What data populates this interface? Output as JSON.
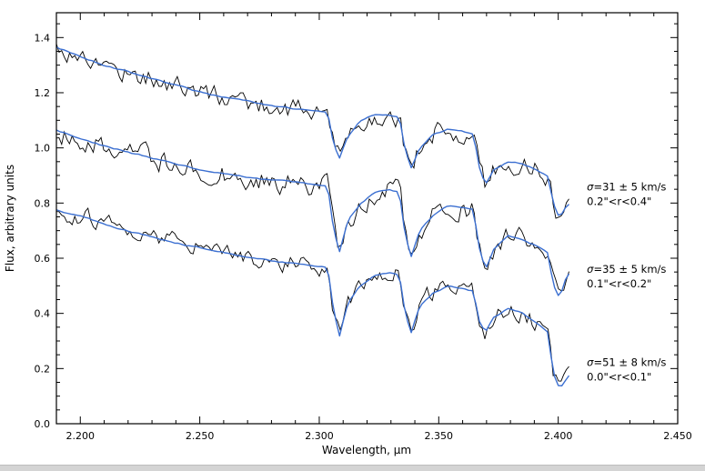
{
  "figure": {
    "xlabel": "Wavelength, μm",
    "ylabel": "Flux, arbitrary units"
  },
  "chart_data": {
    "type": "line",
    "title": "",
    "xlabel": "Wavelength, μm",
    "ylabel": "Flux, arbitrary units",
    "xlim": [
      2.19,
      2.45
    ],
    "ylim": [
      0.0,
      1.49
    ],
    "grid": false,
    "legend_position": "none",
    "xticks": {
      "major": [
        2.2,
        2.25,
        2.3,
        2.35,
        2.4,
        2.45
      ],
      "labels": [
        "2.200",
        "2.250",
        "2.300",
        "2.350",
        "2.400",
        "2.450"
      ],
      "minor_step": 0.01
    },
    "yticks": {
      "major": [
        0.0,
        0.2,
        0.4,
        0.6,
        0.8,
        1.0,
        1.2,
        1.4
      ],
      "labels": [
        "0.0",
        "0.2",
        "0.4",
        "0.6",
        "0.8",
        "1.0",
        "1.2",
        "1.4"
      ],
      "minor_step": 0.05
    },
    "colors": {
      "data_line": "#000000",
      "model_line": "#3b6fd1",
      "frame": "#000000"
    },
    "series": [
      {
        "name": "annulus 0.2-0.4 arcsec",
        "sigma_label": "σ=31 ± 5 km/s",
        "radius_label": "0.2\"<r<0.4\"",
        "annotation_anchor": {
          "x": 2.412,
          "y": 0.845
        },
        "noise_amplitude": 0.035,
        "model_points": [
          [
            2.19,
            1.365
          ],
          [
            2.196,
            1.345
          ],
          [
            2.202,
            1.325
          ],
          [
            2.21,
            1.3
          ],
          [
            2.218,
            1.282
          ],
          [
            2.226,
            1.262
          ],
          [
            2.234,
            1.24
          ],
          [
            2.242,
            1.22
          ],
          [
            2.25,
            1.2
          ],
          [
            2.258,
            1.185
          ],
          [
            2.266,
            1.172
          ],
          [
            2.274,
            1.16
          ],
          [
            2.282,
            1.15
          ],
          [
            2.29,
            1.142
          ],
          [
            2.298,
            1.135
          ],
          [
            2.3035,
            1.128
          ],
          [
            2.306,
            1.01
          ],
          [
            2.3085,
            0.96
          ],
          [
            2.312,
            1.04
          ],
          [
            2.317,
            1.095
          ],
          [
            2.323,
            1.12
          ],
          [
            2.329,
            1.122
          ],
          [
            2.3335,
            1.115
          ],
          [
            2.336,
            0.99
          ],
          [
            2.3385,
            0.93
          ],
          [
            2.342,
            1.0
          ],
          [
            2.348,
            1.05
          ],
          [
            2.354,
            1.068
          ],
          [
            2.36,
            1.06
          ],
          [
            2.3645,
            1.05
          ],
          [
            2.367,
            0.93
          ],
          [
            2.3695,
            0.865
          ],
          [
            2.373,
            0.92
          ],
          [
            2.379,
            0.95
          ],
          [
            2.385,
            0.942
          ],
          [
            2.391,
            0.922
          ],
          [
            2.3955,
            0.9
          ],
          [
            2.398,
            0.8
          ],
          [
            2.4005,
            0.745
          ],
          [
            2.403,
            0.78
          ],
          [
            2.405,
            0.8
          ]
        ]
      },
      {
        "name": "annulus 0.1-0.2 arcsec",
        "sigma_label": "σ=35 ± 5 km/s",
        "radius_label": "0.1\"<r<0.2\"",
        "annotation_anchor": {
          "x": 2.412,
          "y": 0.548
        },
        "noise_amplitude": 0.035,
        "model_points": [
          [
            2.19,
            1.065
          ],
          [
            2.196,
            1.048
          ],
          [
            2.202,
            1.03
          ],
          [
            2.21,
            1.008
          ],
          [
            2.218,
            0.99
          ],
          [
            2.226,
            0.972
          ],
          [
            2.234,
            0.955
          ],
          [
            2.242,
            0.94
          ],
          [
            2.25,
            0.925
          ],
          [
            2.258,
            0.91
          ],
          [
            2.266,
            0.898
          ],
          [
            2.274,
            0.888
          ],
          [
            2.282,
            0.88
          ],
          [
            2.29,
            0.872
          ],
          [
            2.298,
            0.864
          ],
          [
            2.3035,
            0.858
          ],
          [
            2.306,
            0.7
          ],
          [
            2.3085,
            0.625
          ],
          [
            2.312,
            0.735
          ],
          [
            2.317,
            0.795
          ],
          [
            2.323,
            0.838
          ],
          [
            2.329,
            0.848
          ],
          [
            2.3335,
            0.84
          ],
          [
            2.336,
            0.68
          ],
          [
            2.3385,
            0.605
          ],
          [
            2.342,
            0.7
          ],
          [
            2.348,
            0.758
          ],
          [
            2.354,
            0.788
          ],
          [
            2.36,
            0.782
          ],
          [
            2.3645,
            0.772
          ],
          [
            2.367,
            0.63
          ],
          [
            2.3695,
            0.555
          ],
          [
            2.373,
            0.63
          ],
          [
            2.379,
            0.678
          ],
          [
            2.385,
            0.668
          ],
          [
            2.391,
            0.645
          ],
          [
            2.3955,
            0.62
          ],
          [
            2.398,
            0.5
          ],
          [
            2.4005,
            0.452
          ],
          [
            2.403,
            0.52
          ],
          [
            2.405,
            0.548
          ]
        ]
      },
      {
        "name": "annulus 0.0-0.1 arcsec",
        "sigma_label": "σ=51 ± 8 km/s",
        "radius_label": "0.0\"<r<0.1\"",
        "annotation_anchor": {
          "x": 2.412,
          "y": 0.21
        },
        "noise_amplitude": 0.03,
        "model_points": [
          [
            2.19,
            0.775
          ],
          [
            2.196,
            0.76
          ],
          [
            2.202,
            0.745
          ],
          [
            2.21,
            0.725
          ],
          [
            2.218,
            0.706
          ],
          [
            2.226,
            0.688
          ],
          [
            2.234,
            0.67
          ],
          [
            2.242,
            0.654
          ],
          [
            2.25,
            0.638
          ],
          [
            2.258,
            0.624
          ],
          [
            2.266,
            0.612
          ],
          [
            2.274,
            0.6
          ],
          [
            2.282,
            0.59
          ],
          [
            2.29,
            0.582
          ],
          [
            2.298,
            0.574
          ],
          [
            2.3035,
            0.568
          ],
          [
            2.306,
            0.41
          ],
          [
            2.3085,
            0.32
          ],
          [
            2.312,
            0.44
          ],
          [
            2.317,
            0.5
          ],
          [
            2.323,
            0.54
          ],
          [
            2.329,
            0.55
          ],
          [
            2.3335,
            0.542
          ],
          [
            2.336,
            0.4
          ],
          [
            2.3385,
            0.33
          ],
          [
            2.342,
            0.425
          ],
          [
            2.348,
            0.478
          ],
          [
            2.354,
            0.5
          ],
          [
            2.36,
            0.492
          ],
          [
            2.3645,
            0.482
          ],
          [
            2.367,
            0.37
          ],
          [
            2.3695,
            0.33
          ],
          [
            2.373,
            0.385
          ],
          [
            2.379,
            0.42
          ],
          [
            2.385,
            0.402
          ],
          [
            2.391,
            0.365
          ],
          [
            2.3955,
            0.332
          ],
          [
            2.398,
            0.18
          ],
          [
            2.4005,
            0.125
          ],
          [
            2.403,
            0.155
          ],
          [
            2.405,
            0.178
          ]
        ]
      }
    ]
  }
}
